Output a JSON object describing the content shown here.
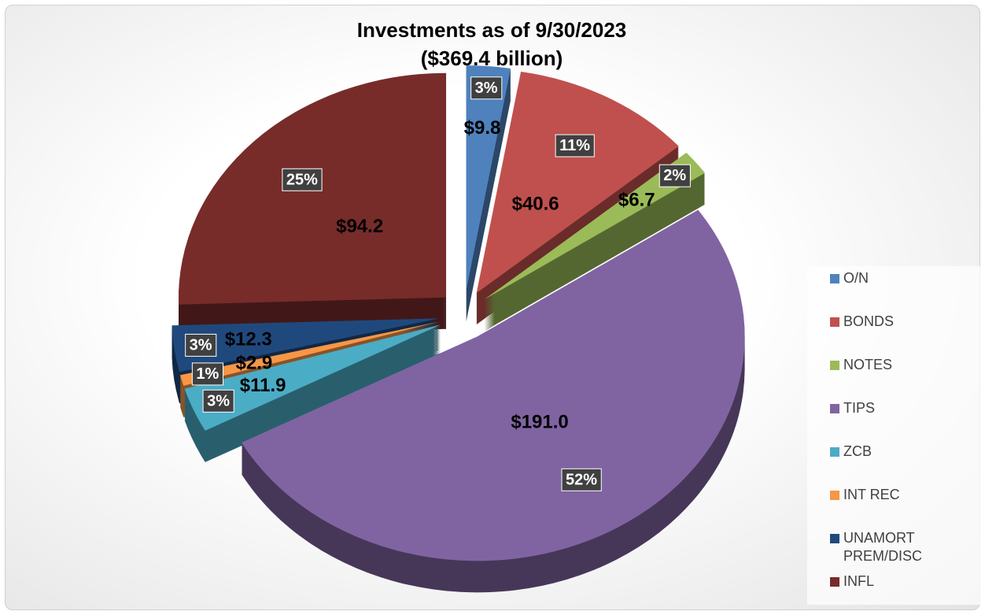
{
  "chart_data": {
    "type": "pie3d",
    "title": "Investments as of 9/30/2023",
    "subtitle": "($369.4 billion)",
    "categories": [
      "O/N",
      "BONDS",
      "NOTES",
      "TIPS",
      "ZCB",
      "INT REC",
      "UNAMORT PREM/DISC",
      "INFL"
    ],
    "values": [
      9.8,
      40.6,
      6.7,
      191.0,
      11.9,
      2.9,
      12.3,
      94.2
    ],
    "value_labels": [
      "$9.8",
      "$40.6",
      "$6.7",
      "$191.0",
      "$11.9",
      "$2.9",
      "$12.3",
      "$94.2"
    ],
    "percent_labels": [
      "3%",
      "11%",
      "2%",
      "52%",
      "3%",
      "1%",
      "3%",
      "25%"
    ],
    "colors": [
      "#4f81bd",
      "#c0504d",
      "#9bbb59",
      "#8064a2",
      "#4bacc6",
      "#f79646",
      "#1f497d",
      "#772c2a"
    ],
    "legend": "right"
  }
}
